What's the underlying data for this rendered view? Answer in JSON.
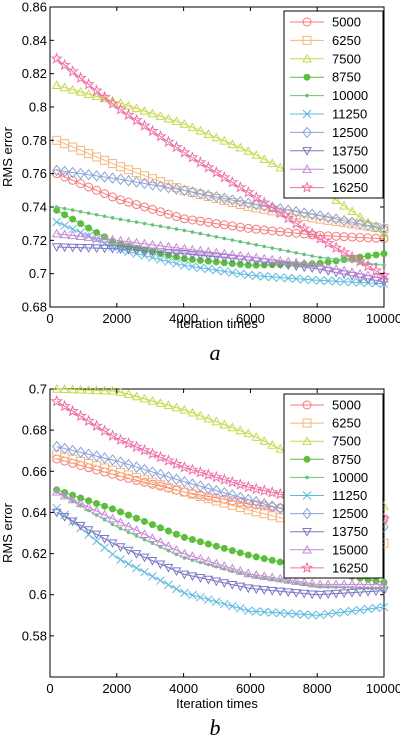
{
  "chart_data": [
    {
      "type": "line",
      "panel_label": "a",
      "xlabel": "Iteration times",
      "ylabel": "RMS error",
      "xlim": [
        0,
        10000
      ],
      "ylim": [
        0.68,
        0.86
      ],
      "xticks": [
        0,
        2000,
        4000,
        6000,
        8000,
        10000
      ],
      "xtick_labels": [
        "0",
        "2000",
        "4000",
        "6000",
        "8000",
        "10000"
      ],
      "yticks": [
        0.68,
        0.7,
        0.72,
        0.74,
        0.76,
        0.78,
        0.8,
        0.82,
        0.84,
        0.86
      ],
      "ytick_labels": [
        "0.68",
        "0.7",
        "0.72",
        "0.74",
        "0.76",
        "0.78",
        "0.8",
        "0.82",
        "0.84",
        "0.86"
      ],
      "grid": false,
      "legend_position": "top-right",
      "x": [
        200,
        2000,
        4000,
        6000,
        8000,
        10000
      ],
      "series": [
        {
          "name": "5000",
          "color": "#f47a7a",
          "marker": "circle",
          "values": [
            0.76,
            0.745,
            0.733,
            0.727,
            0.723,
            0.721
          ]
        },
        {
          "name": "6250",
          "color": "#f7b47a",
          "marker": "square",
          "values": [
            0.78,
            0.765,
            0.75,
            0.74,
            0.733,
            0.727
          ]
        },
        {
          "name": "7500",
          "color": "#c6d94a",
          "marker": "triangle-up",
          "values": [
            0.813,
            0.803,
            0.79,
            0.773,
            0.752,
            0.724
          ]
        },
        {
          "name": "8750",
          "color": "#5cbf3c",
          "marker": "dot",
          "values": [
            0.738,
            0.718,
            0.709,
            0.705,
            0.706,
            0.712
          ]
        },
        {
          "name": "10000",
          "color": "#67c47d",
          "marker": "point",
          "values": [
            0.74,
            0.733,
            0.726,
            0.718,
            0.71,
            0.705
          ]
        },
        {
          "name": "11250",
          "color": "#5fb9df",
          "marker": "x",
          "values": [
            0.731,
            0.715,
            0.705,
            0.699,
            0.696,
            0.694
          ]
        },
        {
          "name": "12500",
          "color": "#8aa3d6",
          "marker": "diamond",
          "values": [
            0.762,
            0.757,
            0.75,
            0.742,
            0.735,
            0.727
          ]
        },
        {
          "name": "13750",
          "color": "#7a77c4",
          "marker": "triangle-down",
          "values": [
            0.716,
            0.715,
            0.712,
            0.708,
            0.703,
            0.695
          ]
        },
        {
          "name": "15000",
          "color": "#c689d6",
          "marker": "triangle-up",
          "values": [
            0.724,
            0.72,
            0.715,
            0.71,
            0.705,
            0.697
          ]
        },
        {
          "name": "16250",
          "color": "#ee6fa6",
          "marker": "star",
          "values": [
            0.829,
            0.8,
            0.773,
            0.748,
            0.722,
            0.699
          ]
        }
      ]
    },
    {
      "type": "line",
      "panel_label": "b",
      "xlabel": "Iteration times",
      "ylabel": "RMS error",
      "xlim": [
        0,
        10000
      ],
      "ylim": [
        0.56,
        0.7
      ],
      "xticks": [
        0,
        2000,
        4000,
        6000,
        8000,
        10000
      ],
      "xtick_labels": [
        "0",
        "2000",
        "4000",
        "6000",
        "8000",
        "10000"
      ],
      "yticks": [
        0.58,
        0.6,
        0.62,
        0.64,
        0.66,
        0.68,
        0.7
      ],
      "ytick_labels": [
        "0.58",
        "0.6",
        "0.62",
        "0.64",
        "0.66",
        "0.68",
        "0.7"
      ],
      "grid": false,
      "legend_position": "top-right",
      "x": [
        200,
        2000,
        4000,
        6000,
        8000,
        10000
      ],
      "series": [
        {
          "name": "5000",
          "color": "#f47a7a",
          "marker": "circle",
          "values": [
            0.666,
            0.658,
            0.65,
            0.644,
            0.64,
            0.637
          ]
        },
        {
          "name": "6250",
          "color": "#f7b47a",
          "marker": "square",
          "values": [
            0.668,
            0.66,
            0.65,
            0.641,
            0.633,
            0.625
          ]
        },
        {
          "name": "7500",
          "color": "#c6d94a",
          "marker": "triangle-up",
          "values": [
            0.7,
            0.699,
            0.69,
            0.678,
            0.662,
            0.643
          ]
        },
        {
          "name": "8750",
          "color": "#5cbf3c",
          "marker": "dot",
          "values": [
            0.651,
            0.641,
            0.628,
            0.619,
            0.612,
            0.606
          ]
        },
        {
          "name": "10000",
          "color": "#67c47d",
          "marker": "point",
          "values": [
            0.65,
            0.633,
            0.618,
            0.609,
            0.604,
            0.603
          ]
        },
        {
          "name": "11250",
          "color": "#5fb9df",
          "marker": "x",
          "values": [
            0.642,
            0.618,
            0.601,
            0.592,
            0.59,
            0.594
          ]
        },
        {
          "name": "12500",
          "color": "#8aa3d6",
          "marker": "diamond",
          "values": [
            0.672,
            0.665,
            0.655,
            0.646,
            0.637,
            0.633
          ]
        },
        {
          "name": "13750",
          "color": "#7a77c4",
          "marker": "triangle-down",
          "values": [
            0.64,
            0.624,
            0.61,
            0.603,
            0.6,
            0.602
          ]
        },
        {
          "name": "15000",
          "color": "#c689d6",
          "marker": "triangle-up",
          "values": [
            0.65,
            0.636,
            0.62,
            0.61,
            0.605,
            0.605
          ]
        },
        {
          "name": "16250",
          "color": "#ee6fa6",
          "marker": "star",
          "values": [
            0.694,
            0.676,
            0.662,
            0.652,
            0.645,
            0.637
          ]
        }
      ]
    }
  ]
}
